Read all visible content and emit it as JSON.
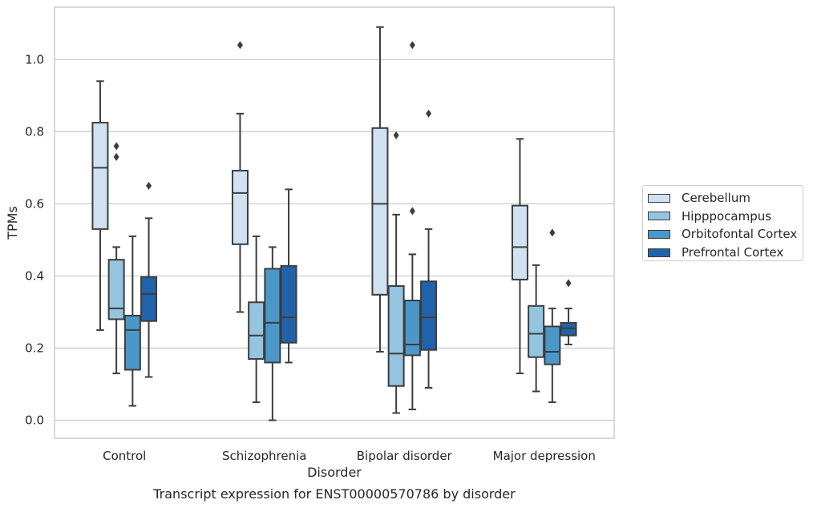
{
  "chart_data": {
    "type": "box",
    "caption": "Transcript expression for ENST00000570786 by disorder",
    "xlabel": "Disorder",
    "ylabel": "TPMs",
    "ylim": [
      -0.05,
      1.145
    ],
    "yticks": [
      "0.0",
      "0.2",
      "0.4",
      "0.6",
      "0.8",
      "1.0"
    ],
    "categories": [
      "Control",
      "Schizophrenia",
      "Bipolar disorder",
      "Major depression"
    ],
    "grid": "horizontal",
    "legend_position": "right",
    "series": [
      {
        "name": "Cerebellum",
        "color": "#d0e1f2",
        "boxes": [
          {
            "whislo": 0.25,
            "q1": 0.53,
            "med": 0.7,
            "q3": 0.825,
            "whishi": 0.94,
            "fliers": []
          },
          {
            "whislo": 0.3,
            "q1": 0.488,
            "med": 0.63,
            "q3": 0.692,
            "whishi": 0.85,
            "fliers": [
              1.04
            ]
          },
          {
            "whislo": 0.19,
            "q1": 0.348,
            "med": 0.6,
            "q3": 0.81,
            "whishi": 1.09,
            "fliers": []
          },
          {
            "whislo": 0.13,
            "q1": 0.39,
            "med": 0.48,
            "q3": 0.595,
            "whishi": 0.78,
            "fliers": []
          }
        ]
      },
      {
        "name": "Hipppocampus",
        "color": "#94c4df",
        "boxes": [
          {
            "whislo": 0.13,
            "q1": 0.28,
            "med": 0.31,
            "q3": 0.445,
            "whishi": 0.48,
            "fliers": [
              0.73,
              0.76
            ]
          },
          {
            "whislo": 0.05,
            "q1": 0.17,
            "med": 0.235,
            "q3": 0.327,
            "whishi": 0.51,
            "fliers": []
          },
          {
            "whislo": 0.02,
            "q1": 0.095,
            "med": 0.185,
            "q3": 0.372,
            "whishi": 0.57,
            "fliers": [
              0.79
            ]
          },
          {
            "whislo": 0.08,
            "q1": 0.175,
            "med": 0.24,
            "q3": 0.317,
            "whishi": 0.43,
            "fliers": []
          }
        ]
      },
      {
        "name": "Orbitofontal Cortex",
        "color": "#4a98c9",
        "boxes": [
          {
            "whislo": 0.04,
            "q1": 0.14,
            "med": 0.25,
            "q3": 0.29,
            "whishi": 0.51,
            "fliers": []
          },
          {
            "whislo": 0.0,
            "q1": 0.16,
            "med": 0.27,
            "q3": 0.42,
            "whishi": 0.48,
            "fliers": []
          },
          {
            "whislo": 0.03,
            "q1": 0.18,
            "med": 0.21,
            "q3": 0.332,
            "whishi": 0.46,
            "fliers": [
              0.58,
              1.04
            ]
          },
          {
            "whislo": 0.05,
            "q1": 0.155,
            "med": 0.19,
            "q3": 0.26,
            "whishi": 0.31,
            "fliers": [
              0.52
            ]
          }
        ]
      },
      {
        "name": "Prefrontal Cortex",
        "color": "#2163aa",
        "boxes": [
          {
            "whislo": 0.12,
            "q1": 0.275,
            "med": 0.35,
            "q3": 0.397,
            "whishi": 0.56,
            "fliers": [
              0.65
            ]
          },
          {
            "whislo": 0.16,
            "q1": 0.215,
            "med": 0.285,
            "q3": 0.428,
            "whishi": 0.64,
            "fliers": []
          },
          {
            "whislo": 0.09,
            "q1": 0.195,
            "med": 0.285,
            "q3": 0.385,
            "whishi": 0.53,
            "fliers": [
              0.85
            ]
          },
          {
            "whislo": 0.21,
            "q1": 0.235,
            "med": 0.255,
            "q3": 0.27,
            "whishi": 0.31,
            "fliers": [
              0.38
            ]
          }
        ]
      }
    ]
  }
}
